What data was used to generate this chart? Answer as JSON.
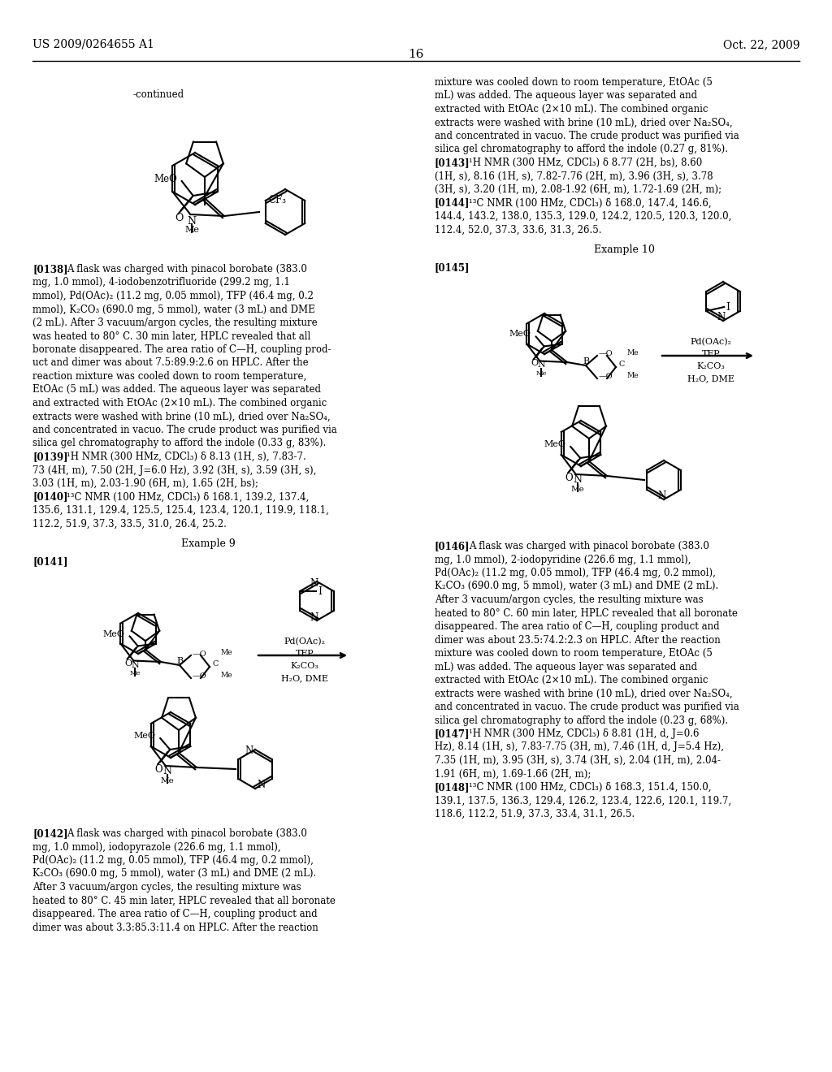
{
  "bg": "#ffffff",
  "header_left": "US 2009/0264655 A1",
  "header_right": "Oct. 22, 2009",
  "page_num": "16"
}
